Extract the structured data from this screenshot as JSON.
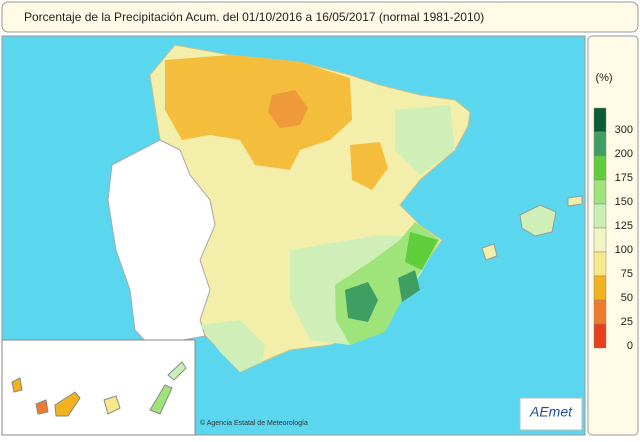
{
  "header": {
    "title": "Porcentaje de la Precipitación Acum. del 01/10/2016 a  16/05/2017  (normal 1981-2010)"
  },
  "legend": {
    "unit": "(%)",
    "items": [
      {
        "label": 300,
        "color": "#0b5e34"
      },
      {
        "label": 200,
        "color": "#3f9e62"
      },
      {
        "label": 175,
        "color": "#5fce3a"
      },
      {
        "label": 150,
        "color": "#9fe47a"
      },
      {
        "label": 125,
        "color": "#c9f0b4"
      },
      {
        "label": 100,
        "color": "#f1f5c4"
      },
      {
        "label": 75,
        "color": "#f7e98a"
      },
      {
        "label": 50,
        "color": "#f0b21e"
      },
      {
        "label": 25,
        "color": "#f07a2c"
      },
      {
        "label": 0,
        "color": "#e8401e"
      }
    ]
  },
  "footer": {
    "credit": "© Agencia Estatal de Meteorología",
    "logo": "AEmet"
  }
}
